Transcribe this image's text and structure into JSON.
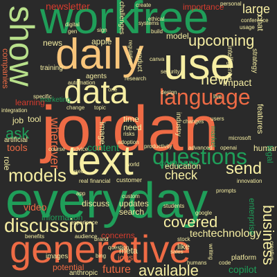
{
  "words": {
    "work": "work",
    "free": "free",
    "show": "show",
    "daily": "daily",
    "use": "use",
    "data": "data",
    "jordan": "jordan",
    "text": "text",
    "everyday": "everyday",
    "generative": "generative",
    "discussion": "discussion",
    "language": "language",
    "questions": "questions",
    "models": "models",
    "upcoming": "upcoming",
    "newsletter": "newsletter",
    "new": "new",
    "covered": "covered",
    "available": "available",
    "future": "future",
    "large": "large",
    "business": "business",
    "send": "send",
    "check": "check",
    "ask": "ask",
    "company": "company",
    "content": "content",
    "technology": "technology",
    "model": "model",
    "impact": "impact",
    "wherever": "wherever",
    "tools": "tools",
    "video": "video",
    "search": "search",
    "updates": "updates",
    "discuss": "discuss",
    "education": "education",
    "information": "information",
    "concerns": "concerns",
    "jobs": "jobs",
    "potential": "potential",
    "copilot": "copilot",
    "tech": "tech",
    "like": "like",
    "meta": "meta",
    "intelligence": "intelligence",
    "strategy": "strategy",
    "challenges": "challenges",
    "importance": "importance",
    "companies": "companies",
    "apple": "apple",
    "news": "news",
    "learning": "learning",
    "job": "job",
    "tool": "tool",
    "marketing": "marketing",
    "human": "human",
    "features": "features",
    "role": "role",
    "enterprise": "enterprise",
    "need": "need",
    "time": "time",
    "image": "image",
    "industry": "industry",
    "training": "training",
    "artificial": "artificial",
    "personal": "personal",
    "conference": "conference",
    "chat": "chat",
    "legal": "legal",
    "agents": "agents",
    "anthropic": "anthropic",
    "images": "images",
    "platform": "platform",
    "code": "code",
    "market": "market",
    "customer": "customer",
    "productivity": "productivity",
    "advanced": "advanced",
    "product": "product",
    "integration": "integration",
    "systems": "systems",
    "adoption": "adoption",
    "google": "google",
    "microsoft": "microsoft",
    "openai": "openai",
    "design": "design",
    "create": "create",
    "sign": "sign",
    "risks": "risks",
    "users": "users",
    "prompts": "prompts",
    "innovation": "innovation",
    "experience": "experience",
    "usage": "usage",
    "brand": "brand",
    "custom": "custom",
    "financial": "financial",
    "real": "real",
    "topic": "topic",
    "advice": "advice",
    "course": "course",
    "benefits": "benefits",
    "audience": "audience",
    "writing": "writing",
    "creative": "creative",
    "students": "students",
    "sales": "sales",
    "bing": "bing",
    "canva": "canva",
    "security": "security",
    "research": "research",
    "changes": "changes",
    "stock": "stock",
    "used": "used",
    "digital": "digital",
    "automation": "automation",
    "ethical": "ethical",
    "world": "world",
    "app": "app",
    "live": "live",
    "humans": "humans",
    "one": "one",
    "change": "change",
    "regulation": "regulation",
    "specific": "specific",
    "gen": "gen",
    "build": "build",
    "question": "question"
  }
}
